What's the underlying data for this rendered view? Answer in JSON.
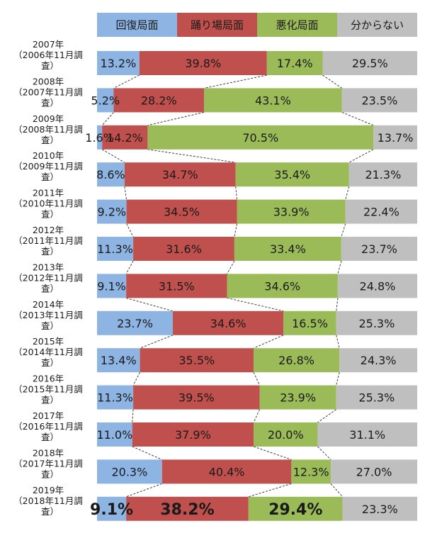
{
  "chart_data": {
    "type": "bar",
    "stacked": "percent",
    "orientation": "horizontal",
    "series": [
      {
        "name": "回復局面",
        "color": "#8db4e2"
      },
      {
        "name": "踊り場局面",
        "color": "#c0504d"
      },
      {
        "name": "悪化局面",
        "color": "#9bbb59"
      },
      {
        "name": "分からない",
        "color": "#bfbfbf"
      }
    ],
    "rows": [
      {
        "label": [
          "2007年",
          "（2006年11月調",
          "査）"
        ],
        "values": [
          13.2,
          39.8,
          17.4,
          29.5
        ],
        "labels": [
          "13.2%",
          "39.8%",
          "17.4%",
          "29.5%"
        ]
      },
      {
        "label": [
          "2008年",
          "（2007年11月調",
          "査）"
        ],
        "values": [
          5.2,
          28.2,
          43.1,
          23.5
        ],
        "labels": [
          "5.2%",
          "28.2%",
          "43.1%",
          "23.5%"
        ]
      },
      {
        "label": [
          "2009年",
          "（2008年11月調",
          "査）"
        ],
        "values": [
          1.6,
          14.2,
          70.5,
          13.7
        ],
        "labels": [
          "1.6%",
          "14.2%",
          "70.5%",
          "13.7%"
        ]
      },
      {
        "label": [
          "2010年",
          "（2009年11月調",
          "査）"
        ],
        "values": [
          8.6,
          34.7,
          35.4,
          21.3
        ],
        "labels": [
          "8.6%",
          "34.7%",
          "35.4%",
          "21.3%"
        ]
      },
      {
        "label": [
          "2011年",
          "（2010年11月調",
          "査）"
        ],
        "values": [
          9.2,
          34.5,
          33.9,
          22.4
        ],
        "labels": [
          "9.2%",
          "34.5%",
          "33.9%",
          "22.4%"
        ]
      },
      {
        "label": [
          "2012年",
          "（2011年11月調",
          "査）"
        ],
        "values": [
          11.3,
          31.6,
          33.4,
          23.7
        ],
        "labels": [
          "11.3%",
          "31.6%",
          "33.4%",
          "23.7%"
        ]
      },
      {
        "label": [
          "2013年",
          "（2012年11月調",
          "査）"
        ],
        "values": [
          9.1,
          31.5,
          34.6,
          24.8
        ],
        "labels": [
          "9.1%",
          "31.5%",
          "34.6%",
          "24.8%"
        ]
      },
      {
        "label": [
          "2014年",
          "（2013年11月調",
          "査）"
        ],
        "values": [
          23.7,
          34.6,
          16.5,
          25.3
        ],
        "labels": [
          "23.7%",
          "34.6%",
          "16.5%",
          "25.3%"
        ]
      },
      {
        "label": [
          "2015年",
          "（2014年11月調",
          "査）"
        ],
        "values": [
          13.4,
          35.5,
          26.8,
          24.3
        ],
        "labels": [
          "13.4%",
          "35.5%",
          "26.8%",
          "24.3%"
        ]
      },
      {
        "label": [
          "2016年",
          "（2015年11月調",
          "査）"
        ],
        "values": [
          11.3,
          39.5,
          23.9,
          25.3
        ],
        "labels": [
          "11.3%",
          "39.5%",
          "23.9%",
          "25.3%"
        ]
      },
      {
        "label": [
          "2017年",
          "（2016年11月調",
          "査）"
        ],
        "values": [
          11.0,
          37.9,
          20.0,
          31.1
        ],
        "labels": [
          "11.0%",
          "37.9%",
          "20.0%",
          "31.1%"
        ]
      },
      {
        "label": [
          "2018年",
          "（2017年11月調",
          "査）"
        ],
        "values": [
          20.3,
          40.4,
          12.3,
          27.0
        ],
        "labels": [
          "20.3%",
          "40.4%",
          "12.3%",
          "27.0%"
        ]
      },
      {
        "label": [
          "2019年",
          "（2018年11月調",
          "査）"
        ],
        "values": [
          9.1,
          38.2,
          29.4,
          23.3
        ],
        "labels": [
          "9.1%",
          "38.2%",
          "29.4%",
          "23.3%"
        ],
        "highlight": [
          true,
          true,
          true,
          false
        ]
      }
    ],
    "xlim": [
      0,
      100
    ],
    "legend_position": "top",
    "connector_lines": "dashed"
  }
}
